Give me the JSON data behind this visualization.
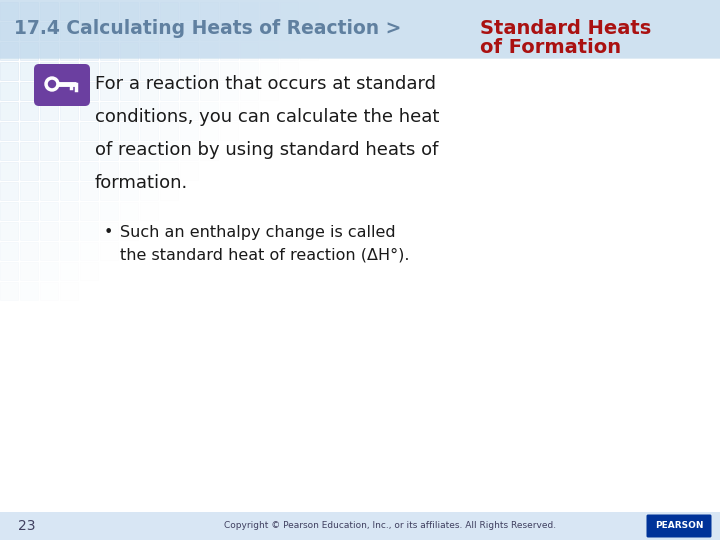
{
  "header_text": "17.4 Calculating Heats of Reaction >",
  "header_color": "#6080A0",
  "title_line1": "Standard Heats",
  "title_line2": "of Formation",
  "title_color": "#AA1111",
  "main_text_line1": "For a reaction that occurs at standard",
  "main_text_line2": "conditions, you can calculate the heat",
  "main_text_line3": "of reaction by using standard heats of",
  "main_text_line4": "formation.",
  "bullet_text_line1": "Such an enthalpy change is called",
  "bullet_text_line2": "the standard heat of reaction (ΔH°).",
  "page_number": "23",
  "copyright_text": "Copyright © Pearson Education, Inc., or its affiliates. All Rights Reserved.",
  "bg_color": "#FFFFFF",
  "header_bg": "#C0D8EC",
  "footer_bg": "#C8DCF0",
  "key_icon_color": "#6B3FA0",
  "text_color": "#1A1A1A",
  "grid_color_light": "#D4E8F4",
  "grid_color_edge": "#B8D0E8"
}
